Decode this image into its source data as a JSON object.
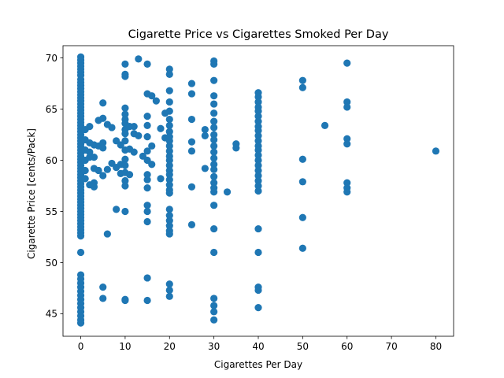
{
  "chart_data": {
    "type": "scatter",
    "title": "Cigarette Price vs Cigarettes Smoked Per Day",
    "xlabel": "Cigarettes Per Day",
    "ylabel": "Cigarette Price [cents/Pack]",
    "xlim": [
      -4,
      84
    ],
    "ylim": [
      42.8,
      71.2
    ],
    "xticks": [
      0,
      10,
      20,
      30,
      40,
      50,
      60,
      70,
      80
    ],
    "yticks": [
      45,
      50,
      55,
      60,
      65,
      70
    ],
    "grid": false,
    "marker_color": "#1f77b4",
    "points": [
      [
        0,
        70.1
      ],
      [
        0,
        69.8
      ],
      [
        0,
        69.5
      ],
      [
        0,
        69.2
      ],
      [
        0,
        68.9
      ],
      [
        0,
        68.6
      ],
      [
        0,
        68.3
      ],
      [
        0,
        67.9
      ],
      [
        0,
        67.6
      ],
      [
        0,
        67.3
      ],
      [
        0,
        67.0
      ],
      [
        0,
        66.7
      ],
      [
        0,
        66.4
      ],
      [
        0,
        66.1
      ],
      [
        0,
        65.8
      ],
      [
        0,
        65.5
      ],
      [
        0,
        65.2
      ],
      [
        0,
        64.9
      ],
      [
        0,
        64.6
      ],
      [
        0,
        64.3
      ],
      [
        0,
        64.0
      ],
      [
        0,
        63.7
      ],
      [
        0,
        63.4
      ],
      [
        0,
        63.1
      ],
      [
        0,
        62.8
      ],
      [
        0,
        62.5
      ],
      [
        0,
        62.2
      ],
      [
        0,
        61.9
      ],
      [
        0,
        61.6
      ],
      [
        0,
        61.3
      ],
      [
        0,
        61.0
      ],
      [
        0,
        60.7
      ],
      [
        0,
        60.4
      ],
      [
        0,
        60.1
      ],
      [
        0,
        59.8
      ],
      [
        0,
        59.5
      ],
      [
        0,
        59.2
      ],
      [
        0,
        58.9
      ],
      [
        0,
        58.6
      ],
      [
        0,
        58.3
      ],
      [
        0,
        58.0
      ],
      [
        0,
        57.7
      ],
      [
        0,
        57.4
      ],
      [
        0,
        57.1
      ],
      [
        0,
        56.8
      ],
      [
        0,
        56.5
      ],
      [
        0,
        56.2
      ],
      [
        0,
        55.9
      ],
      [
        0,
        55.6
      ],
      [
        0,
        55.3
      ],
      [
        0,
        55.0
      ],
      [
        0,
        54.7
      ],
      [
        0,
        54.4
      ],
      [
        0,
        54.1
      ],
      [
        0,
        53.8
      ],
      [
        0,
        53.5
      ],
      [
        0,
        53.2
      ],
      [
        0,
        52.9
      ],
      [
        0,
        52.6
      ],
      [
        0,
        51.0
      ],
      [
        0,
        48.8
      ],
      [
        0,
        48.4
      ],
      [
        0,
        48.0
      ],
      [
        0,
        47.6
      ],
      [
        0,
        47.2
      ],
      [
        0,
        46.8
      ],
      [
        0,
        46.4
      ],
      [
        0,
        46.0
      ],
      [
        0,
        45.6
      ],
      [
        0,
        45.2
      ],
      [
        0,
        44.8
      ],
      [
        0,
        44.4
      ],
      [
        0,
        44.1
      ],
      [
        1,
        63.0
      ],
      [
        1,
        62.0
      ],
      [
        1,
        61.0
      ],
      [
        1,
        60.0
      ],
      [
        1,
        59.0
      ],
      [
        1,
        58.2
      ],
      [
        2,
        63.3
      ],
      [
        2,
        61.7
      ],
      [
        2,
        60.8
      ],
      [
        2,
        60.3
      ],
      [
        2,
        57.6
      ],
      [
        3,
        61.5
      ],
      [
        3,
        60.3
      ],
      [
        3,
        59.2
      ],
      [
        3,
        57.8
      ],
      [
        3,
        57.4
      ],
      [
        4,
        63.9
      ],
      [
        4,
        61.4
      ],
      [
        4,
        59.0
      ],
      [
        5,
        65.6
      ],
      [
        5,
        64.1
      ],
      [
        5,
        61.7
      ],
      [
        5,
        61.2
      ],
      [
        5,
        58.5
      ],
      [
        5,
        47.6
      ],
      [
        5,
        46.5
      ],
      [
        6,
        63.5
      ],
      [
        6,
        59.1
      ],
      [
        6,
        52.8
      ],
      [
        7,
        63.2
      ],
      [
        7,
        59.7
      ],
      [
        8,
        61.9
      ],
      [
        8,
        59.3
      ],
      [
        8,
        55.2
      ],
      [
        9,
        61.5
      ],
      [
        9,
        59.6
      ],
      [
        9,
        58.7
      ],
      [
        10,
        69.4
      ],
      [
        10,
        68.4
      ],
      [
        10,
        68.2
      ],
      [
        10,
        65.1
      ],
      [
        10,
        64.5
      ],
      [
        10,
        64.0
      ],
      [
        10,
        63.6
      ],
      [
        10,
        63.0
      ],
      [
        10,
        62.6
      ],
      [
        10,
        61.9
      ],
      [
        10,
        61.0
      ],
      [
        10,
        60.1
      ],
      [
        10,
        59.5
      ],
      [
        10,
        58.8
      ],
      [
        10,
        58.0
      ],
      [
        10,
        57.5
      ],
      [
        10,
        55.0
      ],
      [
        10,
        46.4
      ],
      [
        10,
        46.3
      ],
      [
        11,
        63.3
      ],
      [
        11,
        61.1
      ],
      [
        11,
        58.6
      ],
      [
        12,
        63.3
      ],
      [
        12,
        62.6
      ],
      [
        12,
        60.8
      ],
      [
        13,
        69.9
      ],
      [
        13,
        62.4
      ],
      [
        14,
        60.4
      ],
      [
        15,
        69.4
      ],
      [
        15,
        66.5
      ],
      [
        15,
        64.3
      ],
      [
        15,
        63.4
      ],
      [
        15,
        62.3
      ],
      [
        15,
        60.9
      ],
      [
        15,
        60.0
      ],
      [
        15,
        58.6
      ],
      [
        15,
        58.1
      ],
      [
        15,
        57.3
      ],
      [
        15,
        55.6
      ],
      [
        15,
        55.0
      ],
      [
        15,
        54.0
      ],
      [
        15,
        48.5
      ],
      [
        15,
        46.3
      ],
      [
        16,
        66.3
      ],
      [
        16,
        61.4
      ],
      [
        16,
        59.6
      ],
      [
        17,
        65.8
      ],
      [
        18,
        63.1
      ],
      [
        18,
        58.2
      ],
      [
        19,
        64.6
      ],
      [
        19,
        62.2
      ],
      [
        20,
        68.9
      ],
      [
        20,
        68.4
      ],
      [
        20,
        66.8
      ],
      [
        20,
        65.7
      ],
      [
        20,
        64.8
      ],
      [
        20,
        64.0
      ],
      [
        20,
        63.4
      ],
      [
        20,
        62.8
      ],
      [
        20,
        62.3
      ],
      [
        20,
        61.9
      ],
      [
        20,
        61.4
      ],
      [
        20,
        60.9
      ],
      [
        20,
        60.4
      ],
      [
        20,
        60.0
      ],
      [
        20,
        59.5
      ],
      [
        20,
        59.0
      ],
      [
        20,
        58.6
      ],
      [
        20,
        58.1
      ],
      [
        20,
        57.6
      ],
      [
        20,
        57.1
      ],
      [
        20,
        56.8
      ],
      [
        20,
        55.2
      ],
      [
        20,
        54.6
      ],
      [
        20,
        54.1
      ],
      [
        20,
        53.6
      ],
      [
        20,
        53.1
      ],
      [
        20,
        52.8
      ],
      [
        20,
        47.9
      ],
      [
        20,
        47.3
      ],
      [
        20,
        46.7
      ],
      [
        25,
        67.5
      ],
      [
        25,
        66.5
      ],
      [
        25,
        64.0
      ],
      [
        25,
        61.8
      ],
      [
        25,
        60.9
      ],
      [
        25,
        57.4
      ],
      [
        25,
        53.7
      ],
      [
        28,
        63.0
      ],
      [
        28,
        62.4
      ],
      [
        28,
        59.2
      ],
      [
        30,
        69.7
      ],
      [
        30,
        69.4
      ],
      [
        30,
        67.8
      ],
      [
        30,
        66.3
      ],
      [
        30,
        65.5
      ],
      [
        30,
        64.6
      ],
      [
        30,
        63.8
      ],
      [
        30,
        63.2
      ],
      [
        30,
        62.5
      ],
      [
        30,
        62.0
      ],
      [
        30,
        61.4
      ],
      [
        30,
        60.8
      ],
      [
        30,
        60.2
      ],
      [
        30,
        59.6
      ],
      [
        30,
        59.1
      ],
      [
        30,
        58.4
      ],
      [
        30,
        57.8
      ],
      [
        30,
        57.3
      ],
      [
        30,
        56.9
      ],
      [
        30,
        55.6
      ],
      [
        30,
        53.3
      ],
      [
        30,
        51.0
      ],
      [
        30,
        46.5
      ],
      [
        30,
        45.8
      ],
      [
        30,
        45.2
      ],
      [
        30,
        44.4
      ],
      [
        33,
        56.9
      ],
      [
        35,
        61.6
      ],
      [
        35,
        61.2
      ],
      [
        40,
        66.6
      ],
      [
        40,
        66.2
      ],
      [
        40,
        65.7
      ],
      [
        40,
        65.2
      ],
      [
        40,
        64.8
      ],
      [
        40,
        64.3
      ],
      [
        40,
        63.8
      ],
      [
        40,
        63.3
      ],
      [
        40,
        62.9
      ],
      [
        40,
        62.4
      ],
      [
        40,
        61.9
      ],
      [
        40,
        61.4
      ],
      [
        40,
        61.0
      ],
      [
        40,
        60.5
      ],
      [
        40,
        60.0
      ],
      [
        40,
        59.5
      ],
      [
        40,
        59.0
      ],
      [
        40,
        58.5
      ],
      [
        40,
        58.0
      ],
      [
        40,
        57.5
      ],
      [
        40,
        57.0
      ],
      [
        40,
        53.3
      ],
      [
        40,
        51.0
      ],
      [
        40,
        47.6
      ],
      [
        40,
        47.3
      ],
      [
        40,
        45.6
      ],
      [
        50,
        67.8
      ],
      [
        50,
        67.1
      ],
      [
        50,
        60.1
      ],
      [
        50,
        57.9
      ],
      [
        50,
        54.4
      ],
      [
        50,
        51.4
      ],
      [
        55,
        63.4
      ],
      [
        60,
        69.5
      ],
      [
        60,
        65.7
      ],
      [
        60,
        65.2
      ],
      [
        60,
        62.1
      ],
      [
        60,
        61.6
      ],
      [
        60,
        57.8
      ],
      [
        60,
        57.3
      ],
      [
        60,
        56.9
      ],
      [
        80,
        60.9
      ]
    ]
  }
}
